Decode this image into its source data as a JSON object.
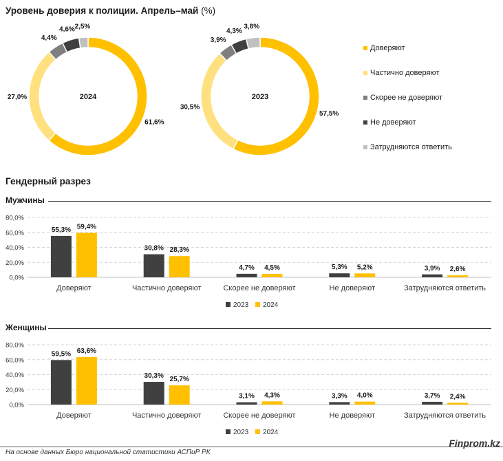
{
  "header": {
    "title": "Уровень доверия к полиции. Апрель–май",
    "unit": "(%)"
  },
  "colors": {
    "trust": "#FFC000",
    "partial": "#FFE07F",
    "rather_not": "#7F7F7F",
    "not": "#404040",
    "undecided": "#C0C0C0",
    "y2023": "#404040",
    "y2024": "#FFC000"
  },
  "chart_data": [
    {
      "type": "pie",
      "center_label": "2024",
      "labels": [
        "Доверяют",
        "Частично доверяют",
        "Скорее не доверяют",
        "Не доверяют",
        "Затрудняются ответить"
      ],
      "values": [
        61.6,
        27.0,
        4.4,
        4.6,
        2.5
      ],
      "value_labels": [
        "61,6%",
        "27,0%",
        "4,4%",
        "4,6%",
        "2,5%"
      ]
    },
    {
      "type": "pie",
      "center_label": "2023",
      "labels": [
        "Доверяют",
        "Частично доверяют",
        "Скорее не доверяют",
        "Не доверяют",
        "Затрудняются ответить"
      ],
      "values": [
        57.5,
        30.5,
        3.9,
        4.3,
        3.8
      ],
      "value_labels": [
        "57,5%",
        "30,5%",
        "3,9%",
        "4,3%",
        "3,8%"
      ]
    },
    {
      "type": "bar",
      "title": "Мужчины",
      "categories": [
        "Доверяют",
        "Частично доверяют",
        "Скорее не доверяют",
        "Не доверяют",
        "Затрудняются ответить"
      ],
      "series": [
        {
          "name": "2023",
          "values": [
            55.3,
            30.8,
            4.7,
            5.3,
            3.9
          ],
          "value_labels": [
            "55,3%",
            "30,8%",
            "4,7%",
            "5,3%",
            "3,9%"
          ]
        },
        {
          "name": "2024",
          "values": [
            59.4,
            28.3,
            4.5,
            5.2,
            2.6
          ],
          "value_labels": [
            "59,4%",
            "28,3%",
            "4,5%",
            "5,2%",
            "2,6%"
          ]
        }
      ],
      "ylim": [
        0,
        80
      ],
      "yticks": [
        "0,0%",
        "20,0%",
        "40,0%",
        "60,0%",
        "80,0%"
      ],
      "grid": true,
      "legend": "bottom"
    },
    {
      "type": "bar",
      "title": "Женщины",
      "categories": [
        "Доверяют",
        "Частично доверяют",
        "Скорее не доверяют",
        "Не доверяют",
        "Затрудняются ответить"
      ],
      "series": [
        {
          "name": "2023",
          "values": [
            59.5,
            30.3,
            3.1,
            3.3,
            3.7
          ],
          "value_labels": [
            "59,5%",
            "30,3%",
            "3,1%",
            "3,3%",
            "3,7%"
          ]
        },
        {
          "name": "2024",
          "values": [
            63.6,
            25.7,
            4.3,
            4.0,
            2.4
          ],
          "value_labels": [
            "63,6%",
            "25,7%",
            "4,3%",
            "4,0%",
            "2,4%"
          ]
        }
      ],
      "ylim": [
        0,
        80
      ],
      "yticks": [
        "0,0%",
        "20,0%",
        "40,0%",
        "60,0%",
        "80,0%"
      ],
      "grid": true,
      "legend": "bottom"
    }
  ],
  "legend": {
    "items": [
      "Доверяют",
      "Частично доверяют",
      "Скорее не доверяют",
      "Не доверяют",
      "Затрудняются ответить"
    ]
  },
  "gender": {
    "section_title": "Гендерный разрез",
    "men_title": "Мужчины",
    "women_title": "Женщины"
  },
  "footer": {
    "source": "На основе данных Бюро национальной статистики АСПиР РК",
    "brand": "Finprom.kz"
  }
}
